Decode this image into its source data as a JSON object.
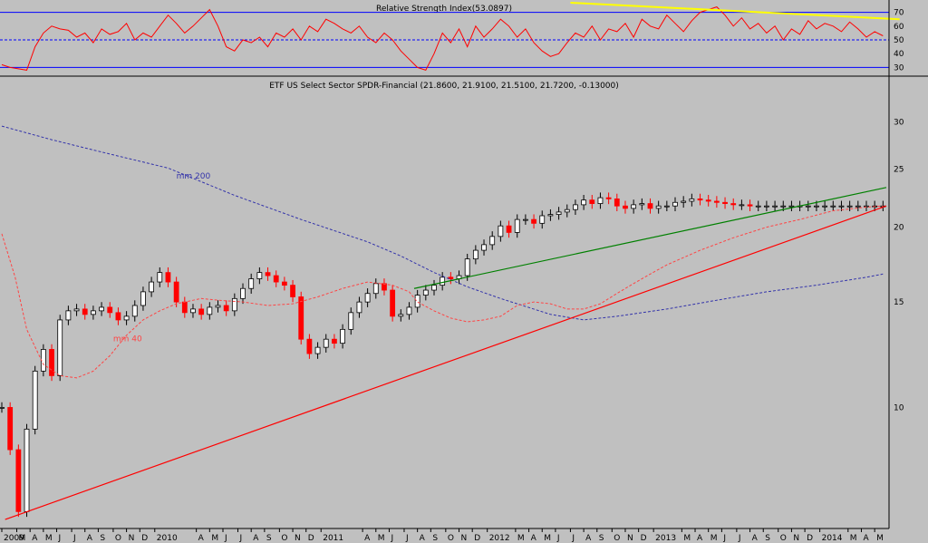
{
  "colors": {
    "background": "#c0c0c0",
    "bull_candle": "#000000",
    "bear_candle": "#ff0000",
    "rsi_line": "#ff0000",
    "rsi_levels": "#0000ff",
    "rsi_trend": "#ffff00",
    "ma200": "#3333aa",
    "ma40": "#ff4444",
    "support": "#ff0000",
    "resistance": "#008000"
  },
  "chart_data": [
    {
      "type": "line",
      "title": "Relative Strength Index(53.0897)",
      "yticks": [
        30,
        40,
        50,
        60,
        70
      ],
      "ylim": [
        25,
        77
      ],
      "levels": [
        30,
        50,
        70
      ],
      "trendline": {
        "x": [
          2012.42,
          2014.4
        ],
        "y": [
          77,
          65
        ]
      },
      "x": [
        2009.0,
        2009.05,
        2009.1,
        2009.15,
        2009.2,
        2009.25,
        2009.3,
        2009.35,
        2009.4,
        2009.45,
        2009.5,
        2009.55,
        2009.6,
        2009.65,
        2009.7,
        2009.75,
        2009.8,
        2009.85,
        2009.9,
        2009.95,
        2010.0,
        2010.05,
        2010.1,
        2010.15,
        2010.2,
        2010.25,
        2010.3,
        2010.35,
        2010.4,
        2010.45,
        2010.5,
        2010.55,
        2010.6,
        2010.65,
        2010.7,
        2010.75,
        2010.8,
        2010.85,
        2010.9,
        2010.95,
        2011.0,
        2011.05,
        2011.1,
        2011.15,
        2011.2,
        2011.25,
        2011.3,
        2011.35,
        2011.4,
        2011.45,
        2011.5,
        2011.55,
        2011.6,
        2011.65,
        2011.7,
        2011.75,
        2011.8,
        2011.85,
        2011.9,
        2011.95,
        2012.0,
        2012.05,
        2012.1,
        2012.15,
        2012.2,
        2012.25,
        2012.3,
        2012.35,
        2012.4,
        2012.45,
        2012.5,
        2012.55,
        2012.6,
        2012.65,
        2012.7,
        2012.75,
        2012.8,
        2012.85,
        2012.9,
        2012.95,
        2013.0,
        2013.05,
        2013.1,
        2013.15,
        2013.2,
        2013.25,
        2013.3,
        2013.35,
        2013.4,
        2013.45,
        2013.5,
        2013.55,
        2013.6,
        2013.65,
        2013.7,
        2013.75,
        2013.8,
        2013.85,
        2013.9,
        2013.95,
        2014.0,
        2014.05,
        2014.1,
        2014.15,
        2014.2,
        2014.25,
        2014.3
      ],
      "y": [
        32,
        30,
        29,
        28,
        45,
        55,
        60,
        58,
        57,
        52,
        55,
        48,
        58,
        54,
        56,
        62,
        50,
        55,
        52,
        60,
        68,
        62,
        55,
        60,
        66,
        72,
        60,
        45,
        42,
        50,
        48,
        52,
        45,
        55,
        52,
        58,
        50,
        60,
        56,
        65,
        62,
        58,
        55,
        60,
        52,
        48,
        55,
        50,
        42,
        36,
        30,
        28,
        40,
        55,
        48,
        58,
        45,
        60,
        52,
        58,
        65,
        60,
        52,
        58,
        48,
        42,
        38,
        40,
        48,
        55,
        52,
        60,
        50,
        58,
        56,
        62,
        52,
        65,
        60,
        58,
        68,
        62,
        56,
        64,
        70,
        72,
        74,
        68,
        60,
        66,
        58,
        62,
        55,
        60,
        50,
        58,
        54,
        64,
        58,
        62,
        60,
        56,
        63,
        58,
        52,
        56,
        53
      ]
    },
    {
      "type": "candlestick",
      "title": "ETF US Select Sector SPDR-Financial (21.8600, 21.9100, 21.5100, 21.7200, -0.13000)",
      "yscale": "log",
      "ylim": [
        6.3,
        35.5
      ],
      "yticks": [
        10,
        15,
        20,
        25,
        30
      ],
      "xlim": [
        2009.0,
        2014.32
      ],
      "xtick_labels": [
        "2009",
        "M",
        "A",
        "M",
        "J",
        "J",
        "A",
        "S",
        "O",
        "N",
        "D",
        "2010",
        "A",
        "M",
        "J",
        "J",
        "A",
        "S",
        "O",
        "N",
        "D",
        "2011",
        "A",
        "M",
        "J",
        "J",
        "A",
        "S",
        "O",
        "N",
        "D",
        "2012",
        "M",
        "A",
        "M",
        "J",
        "J",
        "A",
        "S",
        "O",
        "N",
        "D",
        "2013",
        "M",
        "A",
        "M",
        "J",
        "J",
        "A",
        "S",
        "O",
        "N",
        "D",
        "2014",
        "M",
        "A",
        "M"
      ],
      "xtick_positions": [
        2009.0,
        2009.09,
        2009.17,
        2009.25,
        2009.33,
        2009.42,
        2009.5,
        2009.58,
        2009.67,
        2009.75,
        2009.83,
        2009.92,
        2010.17,
        2010.25,
        2010.33,
        2010.42,
        2010.5,
        2010.58,
        2010.67,
        2010.75,
        2010.83,
        2010.92,
        2011.17,
        2011.25,
        2011.33,
        2011.42,
        2011.5,
        2011.58,
        2011.67,
        2011.75,
        2011.83,
        2011.92,
        2012.09,
        2012.17,
        2012.25,
        2012.33,
        2012.42,
        2012.5,
        2012.58,
        2012.67,
        2012.75,
        2012.83,
        2012.92,
        2013.09,
        2013.17,
        2013.25,
        2013.33,
        2013.42,
        2013.5,
        2013.58,
        2013.67,
        2013.75,
        2013.83,
        2013.92,
        2014.09,
        2014.17,
        2014.25
      ],
      "annotations": [
        {
          "text": "mm 200",
          "x": 2010.05,
          "y": 24.1,
          "color": "#3333aa"
        },
        {
          "text": "mm 40",
          "x": 2009.67,
          "y": 12.9,
          "color": "#ff4444"
        }
      ],
      "series": [
        {
          "name": "mm 200",
          "style": "dashed",
          "x": [
            2009.0,
            2009.3,
            2009.6,
            2010.0,
            2010.4,
            2010.8,
            2011.2,
            2011.4,
            2011.6,
            2011.8,
            2012.0,
            2012.3,
            2012.5,
            2012.7,
            2013.0,
            2013.3,
            2013.6,
            2013.9,
            2014.2,
            2014.3
          ],
          "y": [
            29.5,
            28.0,
            26.7,
            25.1,
            22.6,
            20.6,
            18.9,
            17.9,
            16.8,
            15.9,
            15.2,
            14.3,
            14.0,
            14.2,
            14.6,
            15.1,
            15.6,
            16.0,
            16.5,
            16.7
          ]
        },
        {
          "name": "mm 40",
          "style": "dashed",
          "x": [
            2009.0,
            2009.08,
            2009.15,
            2009.25,
            2009.35,
            2009.45,
            2009.55,
            2009.65,
            2009.75,
            2009.85,
            2009.95,
            2010.05,
            2010.2,
            2010.3,
            2010.45,
            2010.6,
            2010.75,
            2010.9,
            2011.05,
            2011.2,
            2011.35,
            2011.45,
            2011.5,
            2011.6,
            2011.7,
            2011.8,
            2011.9,
            2012.0,
            2012.1,
            2012.2,
            2012.3,
            2012.4,
            2012.5,
            2012.6,
            2012.7,
            2012.8,
            2012.9,
            2013.0,
            2013.2,
            2013.4,
            2013.6,
            2013.8,
            2014.0,
            2014.2,
            2014.3
          ],
          "y": [
            19.5,
            16.5,
            13.5,
            11.8,
            11.3,
            11.2,
            11.5,
            12.2,
            13.2,
            14.0,
            14.5,
            14.9,
            15.2,
            15.1,
            15.0,
            14.8,
            14.9,
            15.3,
            15.8,
            16.2,
            16.0,
            15.6,
            15.0,
            14.5,
            14.1,
            13.9,
            14.0,
            14.2,
            14.8,
            15.0,
            14.9,
            14.6,
            14.6,
            14.9,
            15.5,
            16.1,
            16.7,
            17.3,
            18.3,
            19.2,
            20.0,
            20.6,
            21.3,
            21.6,
            21.7
          ]
        },
        {
          "name": "support",
          "style": "solid",
          "x": [
            2009.02,
            2014.32
          ],
          "y": [
            6.5,
            21.7
          ]
        },
        {
          "name": "resistance",
          "style": "solid",
          "x": [
            2011.48,
            2014.32
          ],
          "y": [
            15.8,
            23.3
          ]
        }
      ],
      "candles": {
        "x": [
          2009.0,
          2009.05,
          2009.1,
          2009.15,
          2009.2,
          2009.25,
          2009.3,
          2009.35,
          2009.4,
          2009.45,
          2009.5,
          2009.55,
          2009.6,
          2009.65,
          2009.7,
          2009.75,
          2009.8,
          2009.85,
          2009.9,
          2009.95,
          2010.0,
          2010.05,
          2010.1,
          2010.15,
          2010.2,
          2010.25,
          2010.3,
          2010.35,
          2010.4,
          2010.45,
          2010.5,
          2010.55,
          2010.6,
          2010.65,
          2010.7,
          2010.75,
          2010.8,
          2010.85,
          2010.9,
          2010.95,
          2011.0,
          2011.05,
          2011.1,
          2011.15,
          2011.2,
          2011.25,
          2011.3,
          2011.35,
          2011.4,
          2011.45,
          2011.5,
          2011.55,
          2011.6,
          2011.65,
          2011.7,
          2011.75,
          2011.8,
          2011.85,
          2011.9,
          2011.95,
          2012.0,
          2012.05,
          2012.1,
          2012.15,
          2012.2,
          2012.25,
          2012.3,
          2012.35,
          2012.4,
          2012.45,
          2012.5,
          2012.55,
          2012.6,
          2012.65,
          2012.7,
          2012.75,
          2012.8,
          2012.85,
          2012.9,
          2012.95,
          2013.0,
          2013.05,
          2013.1,
          2013.15,
          2013.2,
          2013.25,
          2013.3,
          2013.35,
          2013.4,
          2013.45,
          2013.5,
          2013.55,
          2013.6,
          2013.65,
          2013.7,
          2013.75,
          2013.8,
          2013.85,
          2013.9,
          2013.95,
          2014.0,
          2014.05,
          2014.1,
          2014.15,
          2014.2,
          2014.25,
          2014.3
        ],
        "close": [
          10.0,
          8.5,
          6.7,
          9.2,
          11.5,
          12.5,
          11.3,
          14.0,
          14.5,
          14.6,
          14.3,
          14.5,
          14.7,
          14.4,
          14.0,
          14.2,
          14.8,
          15.6,
          16.2,
          16.8,
          16.2,
          15.0,
          14.4,
          14.6,
          14.3,
          14.7,
          14.8,
          14.5,
          15.2,
          15.8,
          16.4,
          16.8,
          16.6,
          16.2,
          16.0,
          15.3,
          13.0,
          12.3,
          12.6,
          13.0,
          12.8,
          13.5,
          14.4,
          15.0,
          15.5,
          16.1,
          15.7,
          14.2,
          14.3,
          14.7,
          15.4,
          15.7,
          16.0,
          16.5,
          16.4,
          16.6,
          17.7,
          18.3,
          18.7,
          19.3,
          20.1,
          19.6,
          20.6,
          20.6,
          20.3,
          20.9,
          21.0,
          21.2,
          21.4,
          21.8,
          22.2,
          21.9,
          22.4,
          22.3,
          21.7,
          21.5,
          21.8,
          21.9,
          21.5,
          21.7,
          21.7,
          22.0,
          22.1,
          22.3,
          22.2,
          22.1,
          22.0,
          21.9,
          21.8,
          21.8,
          21.7,
          21.7,
          21.7,
          21.7,
          21.7,
          21.7,
          21.7,
          21.7,
          21.7,
          21.7,
          21.7,
          21.7,
          21.7,
          21.7,
          21.7,
          21.7,
          21.7
        ]
      }
    }
  ]
}
